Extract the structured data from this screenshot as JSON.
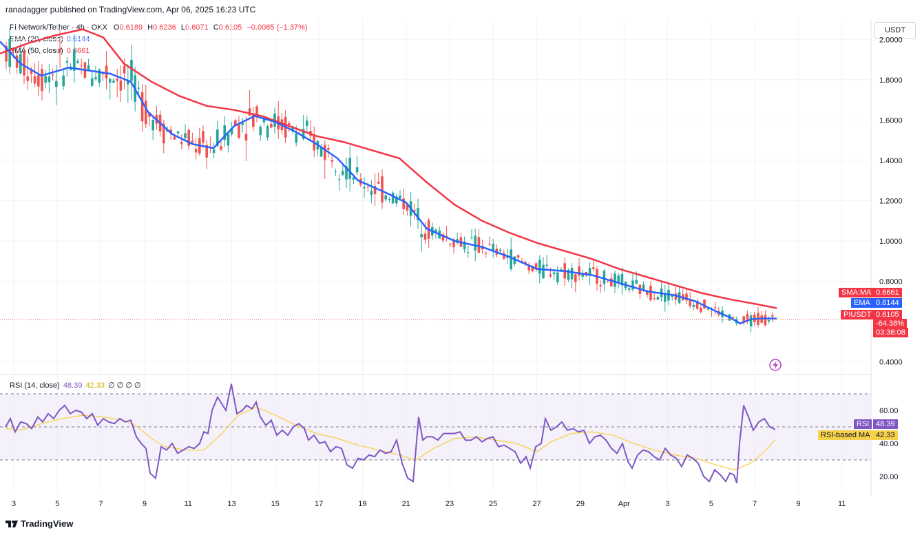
{
  "header": {
    "publisher": "ranadagger published on TradingView.com, Apr 06, 2025 16:23 UTC"
  },
  "legend": {
    "symbol": "Pi Network/Tether · 4h · OKX",
    "o_label": "O",
    "o": "0.6189",
    "h_label": "H",
    "h": "0.6236",
    "l_label": "L",
    "l": "0.6071",
    "c_label": "C",
    "c": "0.6105",
    "change": "−0.0085 (−1.37%)",
    "ema_label": "EMA (20, close)",
    "ema_value": "0.6144",
    "sma_label": "SMA (50, close)",
    "sma_value": "0.6661",
    "rsi_label": "RSI (14, close)",
    "rsi_value": "48.39",
    "rsi_ma_value": "42.33",
    "rsi_extra": "∅ ∅ ∅ ∅"
  },
  "price_axis": {
    "unit": "USDT",
    "ticks": [
      "2.0000",
      "1.8000",
      "1.6000",
      "1.4000",
      "1.2000",
      "1.0000",
      "0.8000",
      "0.4000"
    ]
  },
  "price_tags": {
    "sma_name": "SMA:MA",
    "sma_value": "0.6661",
    "ema_name": "EMA",
    "ema_value": "0.6144",
    "pair_name": "PIUSDT",
    "pair_value": "0.6105",
    "pct": "-64.38%",
    "countdown": "03:36:08"
  },
  "rsi_axis": {
    "ticks": [
      "60.00",
      "40.00",
      "20.00"
    ]
  },
  "rsi_tags": {
    "rsi_name": "RSI",
    "rsi_value": "48.39",
    "ma_name": "RSI-based MA",
    "ma_value": "42.33"
  },
  "time_axis": {
    "labels": [
      "3",
      "5",
      "7",
      "9",
      "11",
      "13",
      "15",
      "17",
      "19",
      "21",
      "23",
      "25",
      "27",
      "29",
      "Apr",
      "3",
      "5",
      "7",
      "9",
      "11"
    ]
  },
  "footer": {
    "brand": "TradingView"
  },
  "colors": {
    "up": "#26a69a",
    "down": "#ef5350",
    "ema": "#2962ff",
    "sma": "#f23645",
    "rsi": "#7e57c2",
    "rsi_ma": "#f7d14a",
    "rsi_band": "#ede7f6"
  },
  "chart_data": {
    "type": "candlestick",
    "price_range": [
      0.35,
      2.1
    ],
    "rsi_range": [
      10,
      80
    ],
    "rsi_levels": [
      70,
      50,
      30
    ],
    "x_labels": [
      "3",
      "5",
      "7",
      "9",
      "11",
      "13",
      "15",
      "17",
      "19",
      "21",
      "23",
      "25",
      "27",
      "29",
      "Apr",
      "3",
      "5",
      "7",
      "9",
      "11"
    ],
    "ema20": [
      [
        0,
        1.99
      ],
      [
        30,
        1.88
      ],
      [
        60,
        1.82
      ],
      [
        100,
        1.86
      ],
      [
        160,
        1.83
      ],
      [
        190,
        1.79
      ],
      [
        215,
        1.64
      ],
      [
        250,
        1.53
      ],
      [
        280,
        1.48
      ],
      [
        310,
        1.46
      ],
      [
        340,
        1.57
      ],
      [
        370,
        1.62
      ],
      [
        400,
        1.59
      ],
      [
        430,
        1.54
      ],
      [
        460,
        1.48
      ],
      [
        490,
        1.41
      ],
      [
        520,
        1.3
      ],
      [
        560,
        1.24
      ],
      [
        590,
        1.19
      ],
      [
        620,
        1.06
      ],
      [
        660,
        1.0
      ],
      [
        700,
        0.97
      ],
      [
        740,
        0.92
      ],
      [
        780,
        0.86
      ],
      [
        820,
        0.85
      ],
      [
        860,
        0.83
      ],
      [
        900,
        0.79
      ],
      [
        940,
        0.75
      ],
      [
        980,
        0.73
      ],
      [
        1010,
        0.7
      ],
      [
        1040,
        0.65
      ],
      [
        1060,
        0.62
      ],
      [
        1075,
        0.59
      ],
      [
        1090,
        0.61
      ],
      [
        1110,
        0.615
      ],
      [
        1128,
        0.6144
      ]
    ],
    "sma50": [
      [
        0,
        1.93
      ],
      [
        40,
        1.98
      ],
      [
        80,
        2.02
      ],
      [
        120,
        2.05
      ],
      [
        150,
        2.01
      ],
      [
        180,
        1.88
      ],
      [
        220,
        1.79
      ],
      [
        260,
        1.72
      ],
      [
        300,
        1.67
      ],
      [
        340,
        1.65
      ],
      [
        380,
        1.62
      ],
      [
        420,
        1.57
      ],
      [
        460,
        1.52
      ],
      [
        500,
        1.49
      ],
      [
        540,
        1.45
      ],
      [
        580,
        1.41
      ],
      [
        620,
        1.29
      ],
      [
        660,
        1.18
      ],
      [
        700,
        1.1
      ],
      [
        740,
        1.04
      ],
      [
        780,
        0.99
      ],
      [
        820,
        0.95
      ],
      [
        860,
        0.91
      ],
      [
        900,
        0.86
      ],
      [
        940,
        0.82
      ],
      [
        980,
        0.78
      ],
      [
        1020,
        0.74
      ],
      [
        1060,
        0.71
      ],
      [
        1100,
        0.685
      ],
      [
        1128,
        0.6661
      ]
    ],
    "rsi": [
      [
        8,
        50
      ],
      [
        15,
        55
      ],
      [
        22,
        47
      ],
      [
        30,
        53
      ],
      [
        38,
        52
      ],
      [
        46,
        49
      ],
      [
        55,
        56
      ],
      [
        62,
        53
      ],
      [
        70,
        58
      ],
      [
        78,
        55
      ],
      [
        86,
        60
      ],
      [
        94,
        63
      ],
      [
        102,
        58
      ],
      [
        110,
        60
      ],
      [
        118,
        59
      ],
      [
        126,
        55
      ],
      [
        134,
        58
      ],
      [
        142,
        51
      ],
      [
        150,
        55
      ],
      [
        158,
        53
      ],
      [
        166,
        52
      ],
      [
        174,
        55
      ],
      [
        182,
        53
      ],
      [
        190,
        54
      ],
      [
        198,
        44
      ],
      [
        205,
        40
      ],
      [
        212,
        37
      ],
      [
        218,
        22
      ],
      [
        226,
        19
      ],
      [
        234,
        38
      ],
      [
        242,
        36
      ],
      [
        250,
        40
      ],
      [
        258,
        34
      ],
      [
        266,
        36
      ],
      [
        274,
        38
      ],
      [
        282,
        37
      ],
      [
        290,
        40
      ],
      [
        296,
        47
      ],
      [
        302,
        46
      ],
      [
        308,
        60
      ],
      [
        316,
        68
      ],
      [
        322,
        64
      ],
      [
        328,
        60
      ],
      [
        336,
        76
      ],
      [
        344,
        58
      ],
      [
        352,
        60
      ],
      [
        358,
        63
      ],
      [
        366,
        61
      ],
      [
        372,
        65
      ],
      [
        378,
        56
      ],
      [
        386,
        51
      ],
      [
        394,
        54
      ],
      [
        402,
        45
      ],
      [
        410,
        48
      ],
      [
        418,
        45
      ],
      [
        426,
        50
      ],
      [
        434,
        52
      ],
      [
        442,
        49
      ],
      [
        448,
        42
      ],
      [
        456,
        45
      ],
      [
        464,
        40
      ],
      [
        472,
        41
      ],
      [
        480,
        35
      ],
      [
        488,
        38
      ],
      [
        496,
        37
      ],
      [
        504,
        27
      ],
      [
        512,
        25
      ],
      [
        520,
        31
      ],
      [
        528,
        30
      ],
      [
        536,
        33
      ],
      [
        544,
        32
      ],
      [
        552,
        36
      ],
      [
        560,
        34
      ],
      [
        568,
        35
      ],
      [
        576,
        42
      ],
      [
        584,
        28
      ],
      [
        592,
        19
      ],
      [
        600,
        17
      ],
      [
        608,
        56
      ],
      [
        614,
        42
      ],
      [
        620,
        44
      ],
      [
        628,
        44
      ],
      [
        636,
        42
      ],
      [
        644,
        46
      ],
      [
        652,
        46
      ],
      [
        660,
        46
      ],
      [
        668,
        47
      ],
      [
        676,
        42
      ],
      [
        684,
        42
      ],
      [
        692,
        44
      ],
      [
        700,
        41
      ],
      [
        708,
        43
      ],
      [
        716,
        44
      ],
      [
        724,
        38
      ],
      [
        732,
        39
      ],
      [
        740,
        37
      ],
      [
        748,
        35
      ],
      [
        756,
        28
      ],
      [
        764,
        32
      ],
      [
        770,
        25
      ],
      [
        778,
        38
      ],
      [
        786,
        40
      ],
      [
        792,
        55
      ],
      [
        800,
        48
      ],
      [
        808,
        50
      ],
      [
        816,
        53
      ],
      [
        824,
        48
      ],
      [
        832,
        49
      ],
      [
        840,
        47
      ],
      [
        848,
        48
      ],
      [
        856,
        40
      ],
      [
        864,
        44
      ],
      [
        872,
        45
      ],
      [
        880,
        42
      ],
      [
        888,
        37
      ],
      [
        896,
        34
      ],
      [
        904,
        40
      ],
      [
        912,
        29
      ],
      [
        918,
        25
      ],
      [
        926,
        33
      ],
      [
        934,
        36
      ],
      [
        942,
        35
      ],
      [
        950,
        32
      ],
      [
        958,
        30
      ],
      [
        966,
        37
      ],
      [
        974,
        33
      ],
      [
        982,
        31
      ],
      [
        990,
        26
      ],
      [
        998,
        33
      ],
      [
        1006,
        31
      ],
      [
        1014,
        28
      ],
      [
        1022,
        20
      ],
      [
        1030,
        17
      ],
      [
        1038,
        24
      ],
      [
        1046,
        21
      ],
      [
        1054,
        17
      ],
      [
        1060,
        22
      ],
      [
        1066,
        21
      ],
      [
        1070,
        16
      ],
      [
        1074,
        40
      ],
      [
        1080,
        63
      ],
      [
        1088,
        55
      ],
      [
        1094,
        48
      ],
      [
        1102,
        53
      ],
      [
        1110,
        55
      ],
      [
        1118,
        50
      ],
      [
        1126,
        48.39
      ]
    ],
    "rsi_ma": [
      [
        8,
        49
      ],
      [
        30,
        48
      ],
      [
        60,
        52
      ],
      [
        90,
        55
      ],
      [
        120,
        57
      ],
      [
        150,
        56
      ],
      [
        180,
        54
      ],
      [
        200,
        50
      ],
      [
        220,
        43
      ],
      [
        240,
        38
      ],
      [
        270,
        36
      ],
      [
        296,
        36
      ],
      [
        320,
        45
      ],
      [
        346,
        57
      ],
      [
        372,
        62
      ],
      [
        400,
        57
      ],
      [
        430,
        51
      ],
      [
        460,
        46
      ],
      [
        490,
        43
      ],
      [
        520,
        39
      ],
      [
        550,
        36
      ],
      [
        580,
        33
      ],
      [
        604,
        30
      ],
      [
        630,
        37
      ],
      [
        660,
        43
      ],
      [
        690,
        44
      ],
      [
        720,
        42
      ],
      [
        750,
        40
      ],
      [
        780,
        35
      ],
      [
        800,
        41
      ],
      [
        830,
        46
      ],
      [
        860,
        47
      ],
      [
        890,
        45
      ],
      [
        920,
        40
      ],
      [
        950,
        36
      ],
      [
        980,
        33
      ],
      [
        1010,
        31
      ],
      [
        1040,
        27
      ],
      [
        1066,
        24
      ],
      [
        1090,
        28
      ],
      [
        1110,
        35
      ],
      [
        1126,
        42.33
      ]
    ]
  }
}
